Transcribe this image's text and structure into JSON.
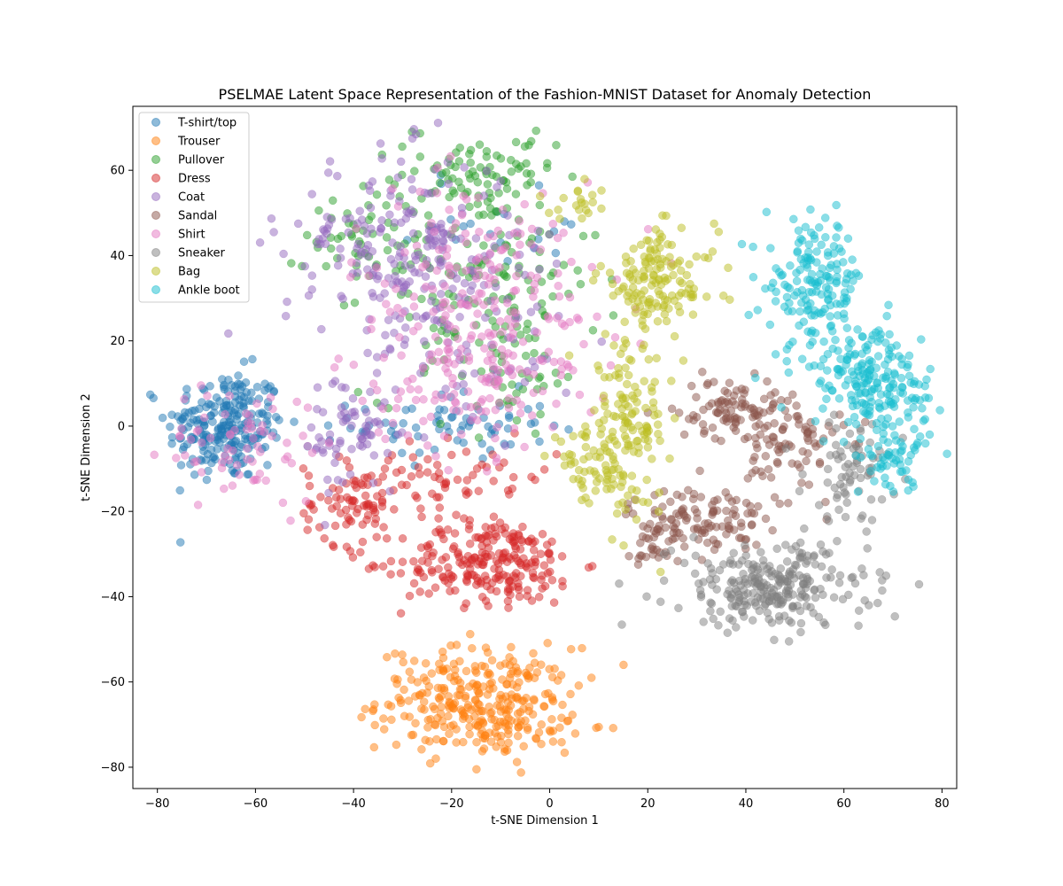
{
  "chart_data": {
    "type": "scatter",
    "title": "PSELMAE Latent Space Representation of the Fashion-MNIST Dataset for Anomaly Detection",
    "xlabel": "t-SNE Dimension 1",
    "ylabel": "t-SNE Dimension 2",
    "xlim": [
      -85,
      83
    ],
    "ylim": [
      -85,
      75
    ],
    "xticks": [
      -80,
      -60,
      -40,
      -20,
      0,
      20,
      40,
      60,
      80
    ],
    "yticks": [
      -80,
      -60,
      -40,
      -20,
      0,
      20,
      40,
      60
    ],
    "xtick_labels": [
      "−80",
      "−60",
      "−40",
      "−20",
      "0",
      "20",
      "40",
      "60",
      "80"
    ],
    "ytick_labels": [
      "−80",
      "−60",
      "−40",
      "−20",
      "0",
      "20",
      "40",
      "60"
    ],
    "grid": false,
    "legend_position": "top-left",
    "marker_alpha": 0.5,
    "series": [
      {
        "name": "T-shirt/top",
        "color": "#1f77b4",
        "clusters": [
          {
            "cx": -66,
            "cy": 0,
            "sx": 6,
            "sy": 6.5,
            "n": 240
          },
          {
            "cx": -20,
            "cy": 0,
            "sx": 10,
            "sy": 4,
            "n": 70
          },
          {
            "cx": -10,
            "cy": 48,
            "sx": 14,
            "sy": 6,
            "n": 20
          }
        ]
      },
      {
        "name": "Trouser",
        "color": "#ff7f0e",
        "clusters": [
          {
            "cx": -15,
            "cy": -64,
            "sx": 10,
            "sy": 6,
            "n": 260
          },
          {
            "cx": -8,
            "cy": -70,
            "sx": 6,
            "sy": 4,
            "n": 60
          }
        ]
      },
      {
        "name": "Pullover",
        "color": "#2ca02c",
        "clusters": [
          {
            "cx": -15,
            "cy": 58,
            "sx": 8,
            "sy": 5,
            "n": 70
          },
          {
            "cx": -14,
            "cy": 35,
            "sx": 12,
            "sy": 14,
            "n": 140
          },
          {
            "cx": -38,
            "cy": 45,
            "sx": 6,
            "sy": 7,
            "n": 50
          },
          {
            "cx": -8,
            "cy": 15,
            "sx": 9,
            "sy": 8,
            "n": 40
          }
        ]
      },
      {
        "name": "Dress",
        "color": "#d62728",
        "clusters": [
          {
            "cx": -12,
            "cy": -32,
            "sx": 9,
            "sy": 5,
            "n": 230
          },
          {
            "cx": -40,
            "cy": -18,
            "sx": 5,
            "sy": 5,
            "n": 80
          },
          {
            "cx": -18,
            "cy": -12,
            "sx": 10,
            "sy": 4,
            "n": 60
          }
        ]
      },
      {
        "name": "Coat",
        "color": "#9467bd",
        "clusters": [
          {
            "cx": -30,
            "cy": 42,
            "sx": 12,
            "sy": 11,
            "n": 210
          },
          {
            "cx": -40,
            "cy": -2,
            "sx": 5,
            "sy": 8,
            "n": 70
          },
          {
            "cx": -15,
            "cy": 20,
            "sx": 10,
            "sy": 10,
            "n": 60
          }
        ]
      },
      {
        "name": "Sandal",
        "color": "#8c564b",
        "clusters": [
          {
            "cx": 38,
            "cy": 4,
            "sx": 6,
            "sy": 3.5,
            "n": 100
          },
          {
            "cx": 30,
            "cy": -22,
            "sx": 7,
            "sy": 4,
            "n": 110
          },
          {
            "cx": 50,
            "cy": -6,
            "sx": 5,
            "sy": 6,
            "n": 70
          },
          {
            "cx": 22,
            "cy": -28,
            "sx": 2.5,
            "sy": 3,
            "n": 25
          }
        ]
      },
      {
        "name": "Shirt",
        "color": "#e377c2",
        "clusters": [
          {
            "cx": -14,
            "cy": 30,
            "sx": 14,
            "sy": 14,
            "n": 200
          },
          {
            "cx": -62,
            "cy": -4,
            "sx": 8,
            "sy": 7,
            "n": 70
          },
          {
            "cx": -15,
            "cy": 10,
            "sx": 9,
            "sy": 8,
            "n": 90
          }
        ]
      },
      {
        "name": "Sneaker",
        "color": "#7f7f7f",
        "clusters": [
          {
            "cx": 45,
            "cy": -38,
            "sx": 10,
            "sy": 5,
            "n": 260
          },
          {
            "cx": 62,
            "cy": -10,
            "sx": 5,
            "sy": 6,
            "n": 70
          }
        ]
      },
      {
        "name": "Bag",
        "color": "#bcbd22",
        "clusters": [
          {
            "cx": 22,
            "cy": 34,
            "sx": 6,
            "sy": 6,
            "n": 140
          },
          {
            "cx": 16,
            "cy": 0,
            "sx": 4,
            "sy": 10,
            "n": 140
          },
          {
            "cx": 8,
            "cy": -10,
            "sx": 4,
            "sy": 4,
            "n": 50
          },
          {
            "cx": 6,
            "cy": 52,
            "sx": 3,
            "sy": 2,
            "n": 20
          }
        ]
      },
      {
        "name": "Ankle boot",
        "color": "#17becf",
        "clusters": [
          {
            "cx": 54,
            "cy": 34,
            "sx": 5,
            "sy": 7,
            "n": 150
          },
          {
            "cx": 62,
            "cy": 16,
            "sx": 6,
            "sy": 5,
            "n": 90
          },
          {
            "cx": 68,
            "cy": 6,
            "sx": 5,
            "sy": 6,
            "n": 130
          },
          {
            "cx": 70,
            "cy": -8,
            "sx": 3,
            "sy": 3,
            "n": 40
          }
        ]
      }
    ]
  }
}
